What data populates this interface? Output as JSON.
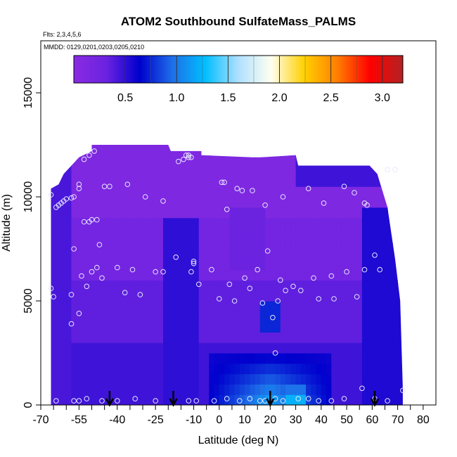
{
  "chart_data": {
    "type": "heatmap",
    "title": "ATOM2 Southbound SulfateMass_PALMS",
    "note_flights": "Flts: 2,3,4,5,6",
    "note_dates": "MMDD: 0129,0201,0203,0205,0210",
    "xlabel": "Latitude (deg N)",
    "ylabel": "Altitude (m)",
    "xlim": [
      -70,
      85
    ],
    "ylim": [
      0,
      17500
    ],
    "x_ticks": [
      "-70",
      "-55",
      "-40",
      "-25",
      "-10",
      "0",
      "10",
      "20",
      "30",
      "40",
      "50",
      "60",
      "70",
      "80"
    ],
    "x_tick_values": [
      -70,
      -55,
      -40,
      -25,
      -10,
      0,
      10,
      20,
      30,
      40,
      50,
      60,
      70,
      80
    ],
    "x_minor_ticks": [
      -65,
      -60,
      -50,
      -45,
      -35,
      -30,
      -20,
      -15,
      -5,
      5,
      15,
      25,
      35,
      45,
      55,
      65,
      75
    ],
    "y_ticks": [
      "0",
      "5000",
      "10000",
      "15000"
    ],
    "y_tick_values": [
      0,
      5000,
      10000,
      15000
    ],
    "colorbar": {
      "ticks": [
        "0.5",
        "1.0",
        "1.5",
        "2.0",
        "2.5",
        "3.0"
      ],
      "tick_values": [
        0.5,
        1.0,
        1.5,
        2.0,
        2.5,
        3.0
      ],
      "range": [
        0,
        3.2
      ],
      "stops": [
        "#8a2be2",
        "#6a22e0",
        "#0000cd",
        "#1e6fe8",
        "#00bfff",
        "#b0e0ff",
        "#fffff0",
        "#ffd000",
        "#ff7f00",
        "#ff0000",
        "#b22222"
      ]
    },
    "low_level_arrows_lat": [
      -43,
      -18,
      20,
      61
    ],
    "flight_region": {
      "lat_range": [
        -66,
        72
      ],
      "alt_range": [
        0,
        12500
      ],
      "top_profile": [
        [
          -66,
          10400
        ],
        [
          -63,
          10600
        ],
        [
          -61,
          11100
        ],
        [
          -58,
          11500
        ],
        [
          -55,
          11900
        ],
        [
          -50,
          12200
        ],
        [
          -50,
          12500
        ],
        [
          -20,
          12500
        ],
        [
          -19,
          12200
        ],
        [
          -7,
          12200
        ],
        [
          -7,
          12000
        ],
        [
          13,
          11900
        ],
        [
          16,
          11900
        ],
        [
          30,
          12000
        ],
        [
          31,
          11500
        ],
        [
          59,
          11500
        ],
        [
          62,
          11100
        ],
        [
          66,
          9500
        ],
        [
          69,
          7000
        ],
        [
          71,
          5000
        ],
        [
          72,
          800
        ],
        [
          72,
          0
        ],
        [
          -66,
          0
        ]
      ]
    },
    "points": [
      {
        "x": -66,
        "y": 10100
      },
      {
        "x": -64,
        "y": 9500
      },
      {
        "x": -63,
        "y": 9600
      },
      {
        "x": -62,
        "y": 9700
      },
      {
        "x": -61,
        "y": 9800
      },
      {
        "x": -60,
        "y": 9900
      },
      {
        "x": -58,
        "y": 9950
      },
      {
        "x": -57,
        "y": 10000
      },
      {
        "x": -55,
        "y": 10600
      },
      {
        "x": -55,
        "y": 10400
      },
      {
        "x": -53,
        "y": 11800
      },
      {
        "x": -51,
        "y": 12000
      },
      {
        "x": -49,
        "y": 12200
      },
      {
        "x": -53,
        "y": 8800
      },
      {
        "x": -51,
        "y": 8800
      },
      {
        "x": -50,
        "y": 8900
      },
      {
        "x": -48,
        "y": 8900
      },
      {
        "x": -47,
        "y": 7700
      },
      {
        "x": -45,
        "y": 10500
      },
      {
        "x": -43,
        "y": 10500
      },
      {
        "x": -36,
        "y": 10600
      },
      {
        "x": -29,
        "y": 10000
      },
      {
        "x": -22,
        "y": 9800
      },
      {
        "x": -16,
        "y": 11700
      },
      {
        "x": -14,
        "y": 11800
      },
      {
        "x": -13,
        "y": 12000
      },
      {
        "x": -12,
        "y": 11900
      },
      {
        "x": -12,
        "y": 12000
      },
      {
        "x": -11,
        "y": 11900
      },
      {
        "x": 1,
        "y": 10700
      },
      {
        "x": 2,
        "y": 10700
      },
      {
        "x": 3,
        "y": 9400
      },
      {
        "x": 7,
        "y": 10400
      },
      {
        "x": 9,
        "y": 10300
      },
      {
        "x": 13,
        "y": 10300
      },
      {
        "x": 18,
        "y": 9600
      },
      {
        "x": 25,
        "y": 10000
      },
      {
        "x": 35,
        "y": 10400
      },
      {
        "x": 41,
        "y": 9700
      },
      {
        "x": 49,
        "y": 10500
      },
      {
        "x": 53,
        "y": 10200
      },
      {
        "x": 57,
        "y": 9700
      },
      {
        "x": 58,
        "y": 9600
      },
      {
        "x": 66,
        "y": 11300
      },
      {
        "x": 69,
        "y": 11300
      },
      {
        "x": -66,
        "y": 5600
      },
      {
        "x": -65,
        "y": 5200
      },
      {
        "x": -57,
        "y": 7500
      },
      {
        "x": -54,
        "y": 6200
      },
      {
        "x": -52,
        "y": 5700
      },
      {
        "x": -50,
        "y": 6400
      },
      {
        "x": -48,
        "y": 6600
      },
      {
        "x": -46,
        "y": 6100
      },
      {
        "x": -40,
        "y": 6600
      },
      {
        "x": -37,
        "y": 5400
      },
      {
        "x": -34,
        "y": 6500
      },
      {
        "x": -31,
        "y": 5300
      },
      {
        "x": -25,
        "y": 6400
      },
      {
        "x": -22,
        "y": 6400
      },
      {
        "x": -17,
        "y": 7100
      },
      {
        "x": -10,
        "y": 6900
      },
      {
        "x": -10,
        "y": 6800
      },
      {
        "x": -11,
        "y": 6400
      },
      {
        "x": -8,
        "y": 5800
      },
      {
        "x": -3,
        "y": 6500
      },
      {
        "x": 4,
        "y": 5800
      },
      {
        "x": 6,
        "y": 5000
      },
      {
        "x": 10,
        "y": 6100
      },
      {
        "x": 12,
        "y": 5600
      },
      {
        "x": 15,
        "y": 6500
      },
      {
        "x": 17,
        "y": 4900
      },
      {
        "x": 19,
        "y": 7400
      },
      {
        "x": 21,
        "y": 4200
      },
      {
        "x": 23,
        "y": 5000
      },
      {
        "x": 24,
        "y": 6000
      },
      {
        "x": 26,
        "y": 5500
      },
      {
        "x": 29,
        "y": 5700
      },
      {
        "x": 32,
        "y": 5500
      },
      {
        "x": 37,
        "y": 6100
      },
      {
        "x": 39,
        "y": 5100
      },
      {
        "x": 44,
        "y": 6200
      },
      {
        "x": 45,
        "y": 5100
      },
      {
        "x": 50,
        "y": 6400
      },
      {
        "x": 54,
        "y": 5200
      },
      {
        "x": 57,
        "y": 6500
      },
      {
        "x": 61,
        "y": 7200
      },
      {
        "x": 63,
        "y": 6500
      },
      {
        "x": -58,
        "y": 3900
      },
      {
        "x": -55,
        "y": 4400
      },
      {
        "x": 22,
        "y": 2500
      },
      {
        "x": -58,
        "y": 5300
      },
      {
        "x": 0,
        "y": 5100
      },
      {
        "x": -64,
        "y": 200
      },
      {
        "x": -57,
        "y": 200
      },
      {
        "x": -55,
        "y": 200
      },
      {
        "x": -52,
        "y": 300
      },
      {
        "x": -46,
        "y": 200
      },
      {
        "x": -40,
        "y": 200
      },
      {
        "x": -33,
        "y": 300
      },
      {
        "x": -25,
        "y": 200
      },
      {
        "x": -12,
        "y": 200
      },
      {
        "x": -9,
        "y": 200
      },
      {
        "x": -2,
        "y": 200
      },
      {
        "x": 3,
        "y": 300
      },
      {
        "x": 8,
        "y": 200
      },
      {
        "x": 12,
        "y": 300
      },
      {
        "x": 16,
        "y": 200
      },
      {
        "x": 18,
        "y": 200
      },
      {
        "x": 22,
        "y": 300
      },
      {
        "x": 25,
        "y": 200
      },
      {
        "x": 31,
        "y": 300
      },
      {
        "x": 35,
        "y": 300
      },
      {
        "x": 39,
        "y": 200
      },
      {
        "x": 44,
        "y": 200
      },
      {
        "x": 49,
        "y": 300
      },
      {
        "x": 56,
        "y": 800
      },
      {
        "x": 66,
        "y": 200
      },
      {
        "x": 72,
        "y": 700
      },
      {
        "x": 61,
        "y": 300
      }
    ]
  }
}
